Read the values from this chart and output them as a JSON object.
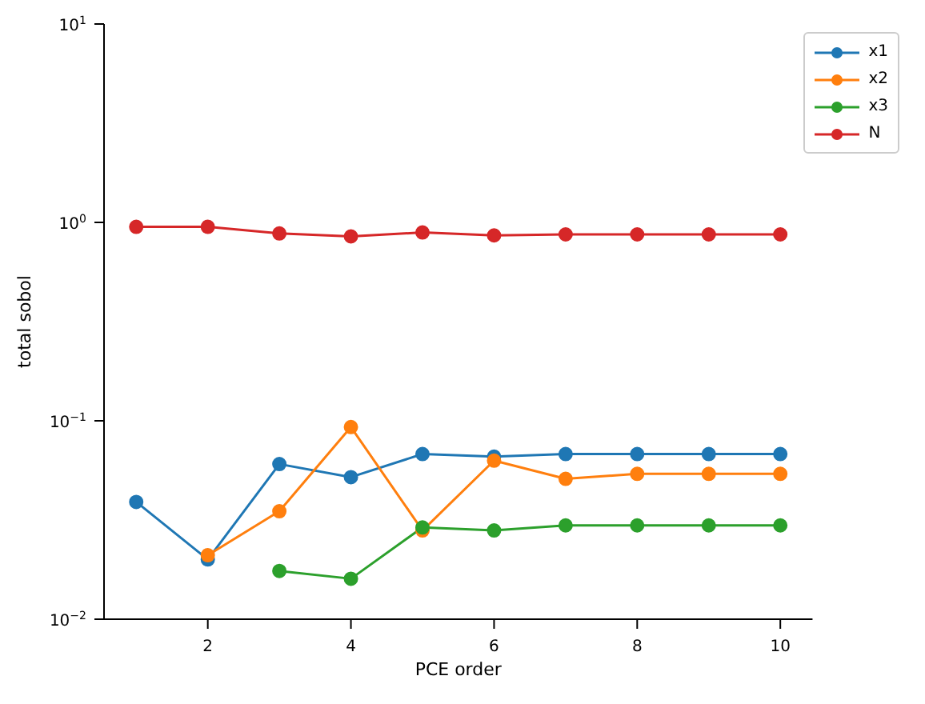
{
  "chart_data": {
    "type": "line",
    "xlabel": "PCE order",
    "ylabel": "total sobol",
    "x": [
      1,
      2,
      3,
      4,
      5,
      6,
      7,
      8,
      9,
      10
    ],
    "series": [
      {
        "name": "x1",
        "color": "#1f77b4",
        "values": [
          0.039,
          0.02,
          0.0605,
          0.052,
          0.068,
          0.066,
          0.068,
          0.068,
          0.068,
          0.068
        ]
      },
      {
        "name": "x2",
        "color": "#ff7f0e",
        "values": [
          null,
          0.021,
          0.035,
          0.093,
          0.028,
          0.063,
          0.051,
          0.054,
          0.054,
          0.054
        ]
      },
      {
        "name": "x3",
        "color": "#2ca02c",
        "values": [
          null,
          null,
          0.0175,
          0.016,
          0.029,
          0.028,
          0.0297,
          0.0297,
          0.0297,
          0.0297
        ]
      },
      {
        "name": "N",
        "color": "#d62728",
        "values": [
          0.95,
          0.95,
          0.88,
          0.85,
          0.89,
          0.86,
          0.87,
          0.87,
          0.87,
          0.87
        ]
      }
    ],
    "log": "y",
    "xlim": [
      0.55,
      10.45
    ],
    "xticks": [
      2,
      4,
      6,
      8,
      10
    ],
    "ylim": [
      0.01,
      10
    ],
    "yticks": [
      {
        "value": 0.01,
        "label": "10$^{−2}$"
      },
      {
        "value": 0.1,
        "label": "10$^{−1}$"
      },
      {
        "value": 1,
        "label": "10$^{0}$"
      },
      {
        "value": 10,
        "label": "10$^{1}$"
      }
    ],
    "grid": false,
    "legend": "top right",
    "marker": "circle",
    "line_style": "solid"
  }
}
